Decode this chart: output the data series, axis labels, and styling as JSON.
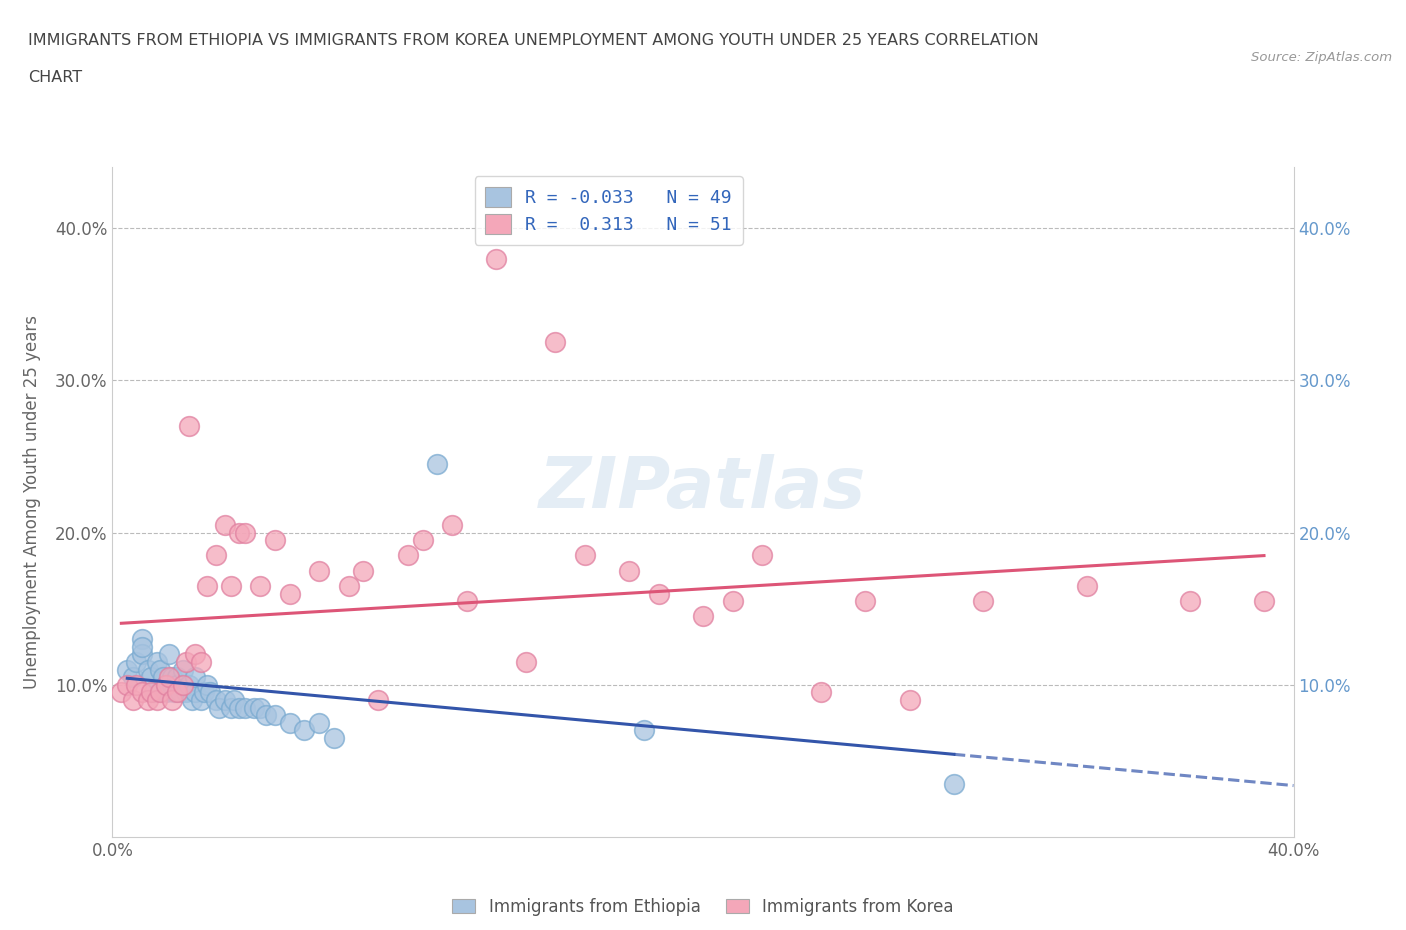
{
  "title_line1": "IMMIGRANTS FROM ETHIOPIA VS IMMIGRANTS FROM KOREA UNEMPLOYMENT AMONG YOUTH UNDER 25 YEARS CORRELATION",
  "title_line2": "CHART",
  "source": "Source: ZipAtlas.com",
  "ylabel": "Unemployment Among Youth under 25 years",
  "xlim": [
    0.0,
    0.4
  ],
  "ylim": [
    0.0,
    0.44
  ],
  "ethiopia_color": "#a8c4e0",
  "ethiopia_edge": "#7aaad0",
  "korea_color": "#f4a7b9",
  "korea_edge": "#e080a0",
  "ethiopia_R": -0.033,
  "ethiopia_N": 49,
  "korea_R": 0.313,
  "korea_N": 51,
  "watermark": "ZIPatlas",
  "legend_label_ethiopia": "Immigrants from Ethiopia",
  "legend_label_korea": "Immigrants from Korea",
  "ethiopia_x": [
    0.005,
    0.007,
    0.008,
    0.01,
    0.01,
    0.01,
    0.012,
    0.013,
    0.014,
    0.015,
    0.016,
    0.017,
    0.018,
    0.018,
    0.019,
    0.02,
    0.02,
    0.021,
    0.022,
    0.022,
    0.023,
    0.024,
    0.025,
    0.026,
    0.027,
    0.028,
    0.028,
    0.03,
    0.031,
    0.032,
    0.033,
    0.035,
    0.036,
    0.038,
    0.04,
    0.041,
    0.043,
    0.045,
    0.048,
    0.05,
    0.052,
    0.055,
    0.06,
    0.065,
    0.07,
    0.075,
    0.11,
    0.18,
    0.285
  ],
  "ethiopia_y": [
    0.11,
    0.105,
    0.115,
    0.13,
    0.12,
    0.125,
    0.11,
    0.105,
    0.095,
    0.115,
    0.11,
    0.105,
    0.1,
    0.095,
    0.12,
    0.1,
    0.105,
    0.095,
    0.105,
    0.1,
    0.095,
    0.11,
    0.095,
    0.1,
    0.09,
    0.095,
    0.105,
    0.09,
    0.095,
    0.1,
    0.095,
    0.09,
    0.085,
    0.09,
    0.085,
    0.09,
    0.085,
    0.085,
    0.085,
    0.085,
    0.08,
    0.08,
    0.075,
    0.07,
    0.075,
    0.065,
    0.245,
    0.07,
    0.035
  ],
  "korea_x": [
    0.003,
    0.005,
    0.007,
    0.008,
    0.01,
    0.012,
    0.013,
    0.015,
    0.016,
    0.018,
    0.019,
    0.02,
    0.022,
    0.024,
    0.025,
    0.026,
    0.028,
    0.03,
    0.032,
    0.035,
    0.038,
    0.04,
    0.043,
    0.045,
    0.05,
    0.055,
    0.06,
    0.07,
    0.08,
    0.085,
    0.09,
    0.1,
    0.105,
    0.115,
    0.12,
    0.13,
    0.14,
    0.15,
    0.16,
    0.175,
    0.185,
    0.2,
    0.21,
    0.22,
    0.24,
    0.255,
    0.27,
    0.295,
    0.33,
    0.365,
    0.39
  ],
  "korea_y": [
    0.095,
    0.1,
    0.09,
    0.1,
    0.095,
    0.09,
    0.095,
    0.09,
    0.095,
    0.1,
    0.105,
    0.09,
    0.095,
    0.1,
    0.115,
    0.27,
    0.12,
    0.115,
    0.165,
    0.185,
    0.205,
    0.165,
    0.2,
    0.2,
    0.165,
    0.195,
    0.16,
    0.175,
    0.165,
    0.175,
    0.09,
    0.185,
    0.195,
    0.205,
    0.155,
    0.38,
    0.115,
    0.325,
    0.185,
    0.175,
    0.16,
    0.145,
    0.155,
    0.185,
    0.095,
    0.155,
    0.09,
    0.155,
    0.165,
    0.155,
    0.155
  ],
  "background_color": "#ffffff",
  "grid_color": "#bbbbbb",
  "title_color": "#444444",
  "axis_label_color": "#666666",
  "right_tick_color": "#6699cc",
  "left_tick_color": "#666666",
  "blue_line_color": "#3355aa",
  "pink_line_color": "#dd5577"
}
